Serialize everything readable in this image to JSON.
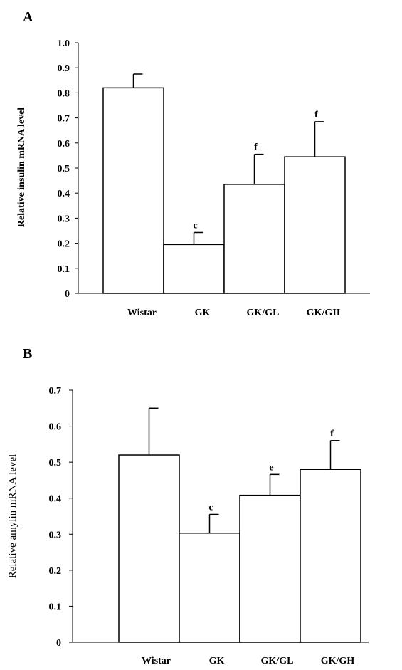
{
  "chart_data": [
    {
      "type": "bar",
      "panel": "A",
      "ylabel": "Relative insulin mRNA level",
      "ylim": [
        0,
        1.0
      ],
      "yticks": [
        "0",
        "0.1",
        "0.2",
        "0.3",
        "0.4",
        "0.5",
        "0.6",
        "0.7",
        "0.8",
        "0.9",
        "1.0"
      ],
      "categories": [
        "Wistar",
        "GK",
        "GK/GL",
        "GK/GII"
      ],
      "values": [
        0.82,
        0.195,
        0.435,
        0.545
      ],
      "errors": [
        0.055,
        0.048,
        0.12,
        0.14
      ],
      "significance": [
        "",
        "c",
        "f",
        "f"
      ]
    },
    {
      "type": "bar",
      "panel": "B",
      "ylabel": "Relative amylin mRNA level",
      "ylim": [
        0,
        0.7
      ],
      "yticks": [
        "0",
        "0.1",
        "0.2",
        "0.3",
        "0.4",
        "0.5",
        "0.6",
        "0.7"
      ],
      "categories": [
        "Wistar",
        "GK",
        "GK/GL",
        "GK/GH"
      ],
      "values": [
        0.52,
        0.303,
        0.408,
        0.48
      ],
      "errors": [
        0.13,
        0.052,
        0.058,
        0.08
      ],
      "significance": [
        "",
        "c",
        "e",
        "f"
      ]
    }
  ]
}
